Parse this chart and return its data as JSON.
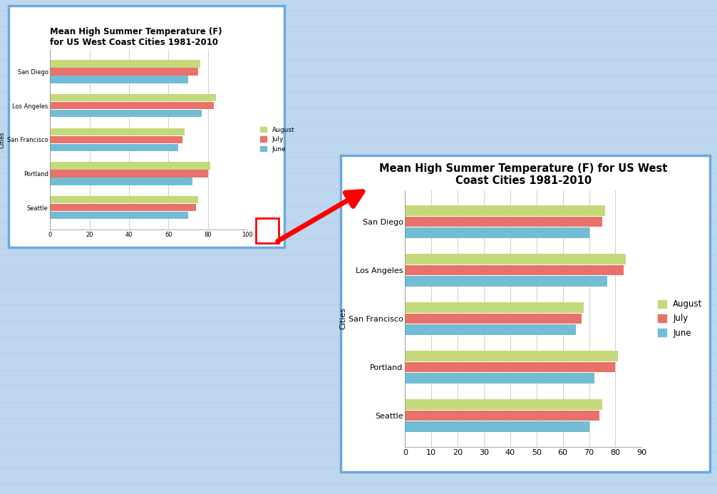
{
  "title_large": "Mean High Summer Temperature (F) for US West\nCoast Cities 1981-2010",
  "title_small": "Mean High Summer Temperature (F)\nfor US West Coast Cities 1981-2010",
  "ylabel": "Cities",
  "cities": [
    "Seattle",
    "Portland",
    "San Francisco",
    "Los Angeles",
    "San Diego"
  ],
  "months": [
    "June",
    "July",
    "August"
  ],
  "values": {
    "San Diego": {
      "August": 76,
      "July": 75,
      "June": 70
    },
    "Los Angeles": {
      "August": 84,
      "July": 83,
      "June": 77
    },
    "San Francisco": {
      "August": 68,
      "July": 67,
      "June": 65
    },
    "Portland": {
      "August": 81,
      "July": 80,
      "June": 72
    },
    "Seattle": {
      "August": 75,
      "July": 74,
      "June": 70
    }
  },
  "colors": {
    "August": "#C4D97A",
    "July": "#E8726A",
    "June": "#72BCD4"
  },
  "bg_color": "#BDD7EE",
  "plot_bg": "#FFFFFF",
  "grid_color": "#BBBBBB",
  "border_color": "#6FA8DC",
  "small_xlim": [
    0,
    100
  ],
  "large_xlim": [
    0,
    90
  ],
  "small_xticks": [
    0,
    20,
    40,
    60,
    80,
    100
  ],
  "large_xticks": [
    0,
    10,
    20,
    30,
    40,
    50,
    60,
    70,
    80,
    90
  ]
}
